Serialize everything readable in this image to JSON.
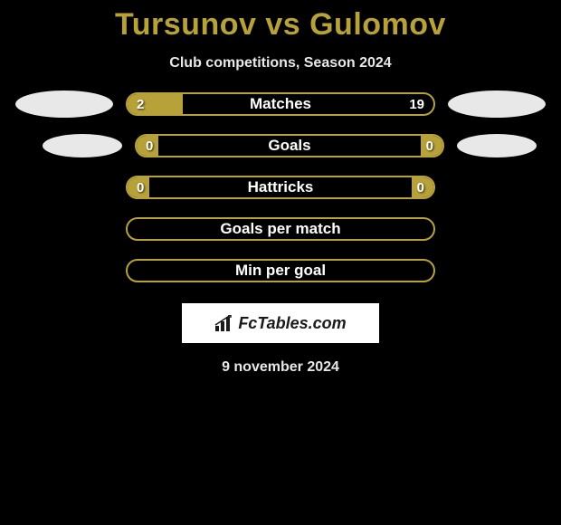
{
  "title": "Tursunov vs Gulomov",
  "subtitle": "Club competitions, Season 2024",
  "date": "9 november 2024",
  "logo_text": "FcTables.com",
  "colors": {
    "background": "#000000",
    "accent": "#b7a23a",
    "text": "#e8e8e8",
    "bar_text": "#ffffff",
    "ellipse": "#e8e8e8",
    "logo_bg": "#ffffff",
    "logo_text": "#1a1a1a"
  },
  "rows": [
    {
      "label": "Matches",
      "left_value": "2",
      "right_value": "19",
      "left_fill_pct": 18,
      "right_fill_pct": 0,
      "show_left_ellipse": true,
      "show_right_ellipse": true,
      "show_values": true
    },
    {
      "label": "Goals",
      "left_value": "0",
      "right_value": "0",
      "left_fill_pct": 7,
      "right_fill_pct": 7,
      "show_left_ellipse": true,
      "show_right_ellipse": true,
      "show_values": true,
      "ellipse_offset": true
    },
    {
      "label": "Hattricks",
      "left_value": "0",
      "right_value": "0",
      "left_fill_pct": 7,
      "right_fill_pct": 7,
      "show_left_ellipse": false,
      "show_right_ellipse": false,
      "show_values": true
    },
    {
      "label": "Goals per match",
      "left_value": "",
      "right_value": "",
      "left_fill_pct": 0,
      "right_fill_pct": 0,
      "show_left_ellipse": false,
      "show_right_ellipse": false,
      "show_values": false
    },
    {
      "label": "Min per goal",
      "left_value": "",
      "right_value": "",
      "left_fill_pct": 0,
      "right_fill_pct": 0,
      "show_left_ellipse": false,
      "show_right_ellipse": false,
      "show_values": false
    }
  ]
}
